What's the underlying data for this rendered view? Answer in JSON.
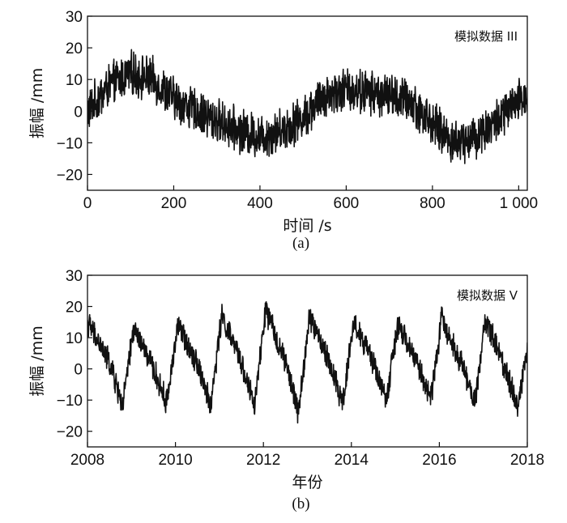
{
  "chart_data": [
    {
      "type": "line",
      "title": "模拟数据 III",
      "xlabel": "时间 /s",
      "ylabel": "振幅 /mm",
      "sublabel": "(a)",
      "xlim": [
        0,
        1020
      ],
      "ylim": [
        -25,
        30
      ],
      "x_ticks": [
        0,
        200,
        400,
        600,
        800,
        1000
      ],
      "x_tick_labels": [
        "0",
        "200",
        "400",
        "600",
        "800",
        "1 000"
      ],
      "y_ticks": [
        -20,
        -10,
        0,
        10,
        20,
        30
      ],
      "y_tick_labels": [
        "−20",
        "−10",
        "0",
        "10",
        "20",
        "30"
      ],
      "grid": false,
      "series": [
        {
          "x": [
            0,
            50,
            100,
            150,
            200,
            250,
            300,
            350,
            400,
            450,
            500,
            550,
            600,
            650,
            700,
            750,
            800,
            850,
            900,
            950,
            1000,
            1020
          ],
          "y": [
            0,
            8,
            12,
            10,
            4,
            0,
            -3,
            -6,
            -8,
            -6,
            -2,
            5,
            7,
            6,
            5,
            3,
            -4,
            -10,
            -8,
            -3,
            3,
            5
          ]
        }
      ],
      "noise_amplitude": 6,
      "line_color": "#111111"
    },
    {
      "type": "line",
      "title": "模拟数据 V",
      "xlabel": "年份",
      "ylabel": "振幅 /mm",
      "sublabel": "(b)",
      "xlim": [
        2008,
        2018
      ],
      "ylim": [
        -25,
        30
      ],
      "x_ticks": [
        2008,
        2010,
        2012,
        2014,
        2016,
        2018
      ],
      "x_tick_labels": [
        "2008",
        "2010",
        "2012",
        "2014",
        "2016",
        "2018"
      ],
      "y_ticks": [
        -20,
        -10,
        0,
        10,
        20,
        30
      ],
      "y_tick_labels": [
        "−20",
        "−10",
        "0",
        "10",
        "20",
        "30"
      ],
      "grid": false,
      "series": [
        {
          "x": [
            2008.0,
            2008.5,
            2008.8,
            2009.05,
            2009.5,
            2009.8,
            2010.05,
            2010.5,
            2010.8,
            2011.05,
            2011.5,
            2011.8,
            2012.05,
            2012.5,
            2012.8,
            2013.05,
            2013.5,
            2013.8,
            2014.05,
            2014.5,
            2014.8,
            2015.05,
            2015.5,
            2015.8,
            2016.05,
            2016.5,
            2016.8,
            2017.05,
            2017.5,
            2017.8,
            2018.0
          ],
          "y": [
            15,
            2,
            -12,
            13,
            0,
            -11,
            14,
            2,
            -12,
            17,
            2,
            -12,
            19,
            2,
            -14,
            17,
            2,
            -11,
            15,
            2,
            -10,
            14,
            2,
            -10,
            16,
            2,
            -11,
            16,
            0,
            -12,
            8
          ]
        }
      ],
      "noise_amplitude": 3.5,
      "line_color": "#111111"
    }
  ]
}
